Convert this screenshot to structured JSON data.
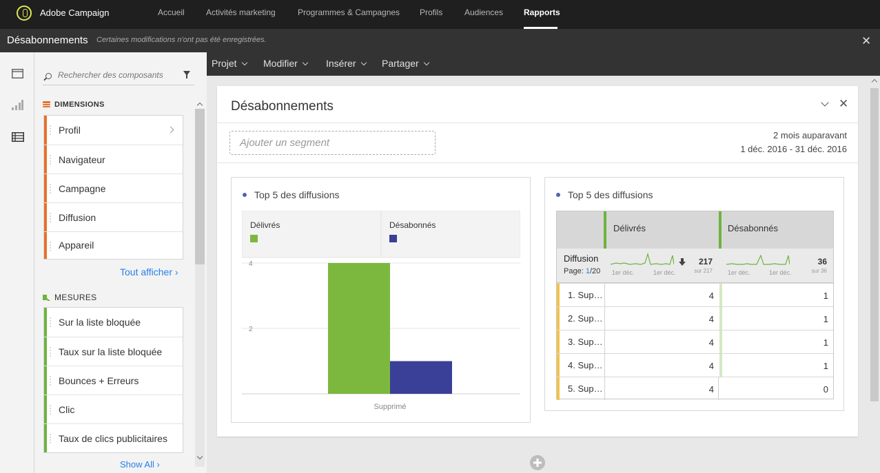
{
  "nav": {
    "brand": "Adobe Campaign",
    "items": [
      "Accueil",
      "Activités marketing",
      "Programmes & Campagnes",
      "Profils",
      "Audiences",
      "Rapports"
    ],
    "active": "Rapports"
  },
  "titlebar": {
    "title": "Désabonnements",
    "note": "Certaines modifications n'ont pas été enregistrées.",
    "close": "✕"
  },
  "menubar": [
    "Projet",
    "Modifier",
    "Insérer",
    "Partager"
  ],
  "panel": {
    "search_placeholder": "Rechercher des composants",
    "dimensions_label": "DIMENSIONS",
    "dimensions": [
      "Profil",
      "Navigateur",
      "Campagne",
      "Diffusion",
      "Appareil"
    ],
    "dimensions_show_all": "Tout afficher ›",
    "measures_label": "MESURES",
    "measures": [
      "Sur la liste bloquée",
      "Taux sur la liste bloquée",
      "Bounces + Erreurs",
      "Clic",
      "Taux de clics publicitaires"
    ],
    "measures_show_all": "Show All ›"
  },
  "card": {
    "title": "Désabonnements",
    "segment_placeholder": "Ajouter un segment",
    "date_label": "2 mois auparavant",
    "date_range": "1 déc. 2016 - 31 déc. 2016",
    "close": "✕"
  },
  "chart_data": {
    "type": "bar",
    "title": "Top 5 des diffusions",
    "categories": [
      "Supprimé"
    ],
    "series": [
      {
        "name": "Délivrés",
        "values": [
          4
        ],
        "color": "#7cb83e"
      },
      {
        "name": "Désabonnés",
        "values": [
          1
        ],
        "color": "#3a3f98"
      }
    ],
    "ylim": [
      0,
      4
    ],
    "yticks": [
      2,
      4
    ],
    "grid": true,
    "legend": "top"
  },
  "table": {
    "title": "Top 5 des diffusions",
    "columns": [
      "Délivrés",
      "Désabonnés"
    ],
    "dimension": "Diffusion",
    "page_label": "Page:",
    "page_current": "1",
    "page_total": "/20",
    "totals": [
      {
        "value": "217",
        "sub": "sur 217",
        "from": "1er déc.",
        "to": "1er déc."
      },
      {
        "value": "36",
        "sub": "sur 36",
        "from": "1er déc.",
        "to": "1er déc."
      }
    ],
    "rows": [
      {
        "label": "1. Sup…",
        "delivered": "4",
        "unsub": "1"
      },
      {
        "label": "2. Sup…",
        "delivered": "4",
        "unsub": "1"
      },
      {
        "label": "3. Sup…",
        "delivered": "4",
        "unsub": "1"
      },
      {
        "label": "4. Sup…",
        "delivered": "4",
        "unsub": "1"
      },
      {
        "label": "5. Sup…",
        "delivered": "4",
        "unsub": "0"
      }
    ]
  }
}
